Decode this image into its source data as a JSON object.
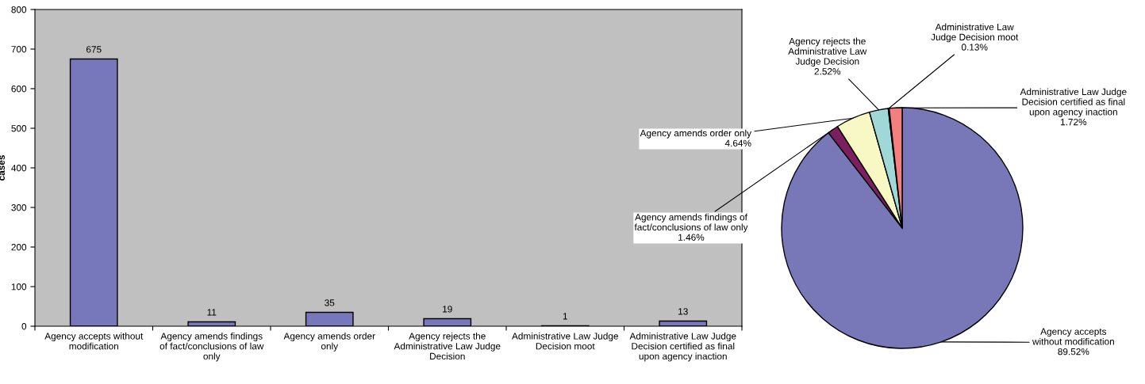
{
  "chart_data": [
    {
      "type": "bar",
      "ylabel": "cases",
      "categories": [
        "Agency accepts without modification",
        "Agency amends findings of fact/conclusions of law only",
        "Agency amends order only",
        "Agency rejects the Administrative Law Judge Decision",
        "Administrative Law Judge Decision moot",
        "Administrative Law Judge Decision certified as final upon agency inaction"
      ],
      "values": [
        675,
        11,
        35,
        19,
        1,
        13
      ],
      "color": "#7777bb",
      "ylim": [
        0,
        800
      ],
      "yticks": [
        0,
        100,
        200,
        300,
        400,
        500,
        600,
        700,
        800
      ],
      "data_labels": true,
      "grid": false,
      "legend": false
    },
    {
      "type": "pie",
      "categories": [
        "Agency accepts without modification",
        "Agency amends findings of fact/conclusions of law only",
        "Agency amends order only",
        "Agency rejects the Administrative Law Judge Decision",
        "Administrative Law Judge Decision moot",
        "Administrative Law Judge Decision certified as final upon agency inaction"
      ],
      "values": [
        89.52,
        1.46,
        4.64,
        2.52,
        0.13,
        1.72
      ],
      "value_labels": [
        "89.52%",
        "1.46%",
        "4.64%",
        "2.52%",
        "0.13%",
        "1.72%"
      ],
      "colors": [
        "#7878b8",
        "#7b1f5e",
        "#f8f8c4",
        "#a0d8d8",
        "#5a2a8a",
        "#f47f7f"
      ],
      "legend": false
    }
  ]
}
